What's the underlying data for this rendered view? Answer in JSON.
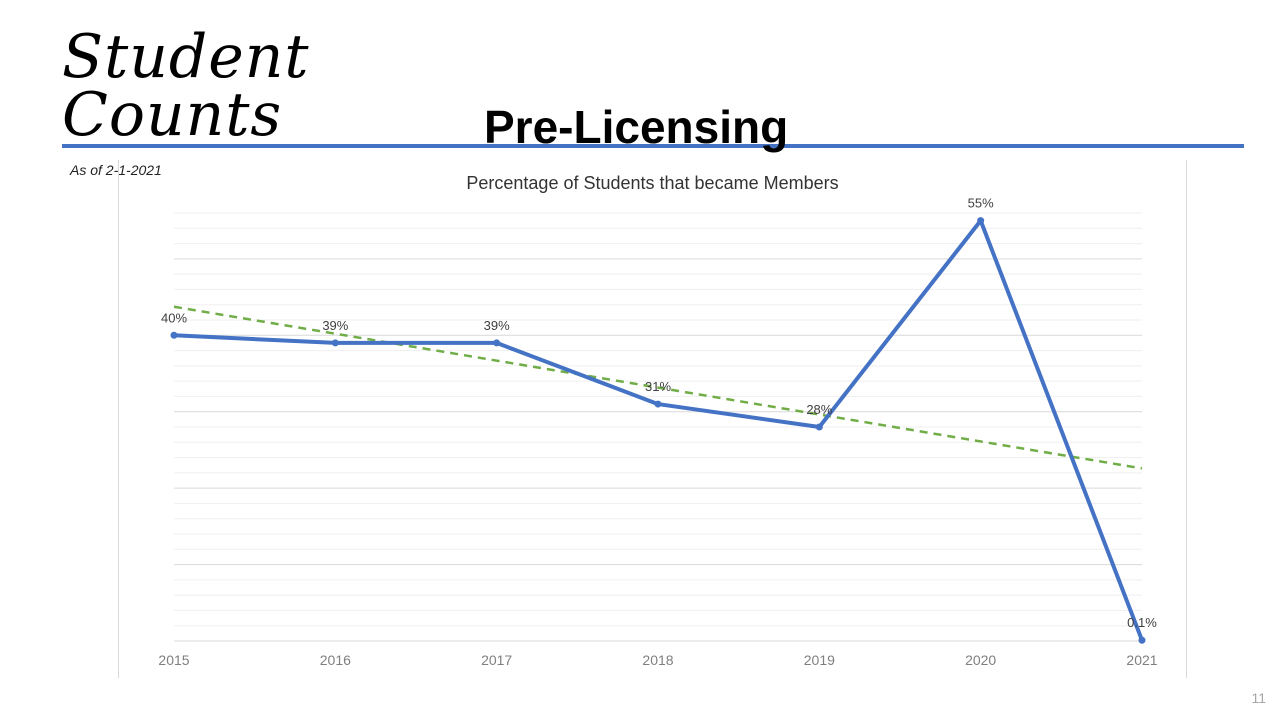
{
  "slide": {
    "title_line1": "Student",
    "title_line2": "Counts",
    "as_of": "As of 2-1-2021",
    "section_title": "Pre-Licensing",
    "page_number": "11",
    "accent_color": "#4472C4",
    "trend_color": "#70AD47"
  },
  "chart_data": {
    "type": "line",
    "title": "Percentage of Students that became Members",
    "xlabel": "",
    "ylabel": "",
    "categories": [
      "2015",
      "2016",
      "2017",
      "2018",
      "2019",
      "2020",
      "2021"
    ],
    "series": [
      {
        "values": [
          40,
          39,
          39,
          31,
          28,
          55,
          0.1
        ],
        "labels": [
          "40%",
          "39%",
          "39%",
          "31%",
          "28%",
          "55%",
          "0.1%"
        ],
        "color": "#4472C4"
      }
    ],
    "trendline": {
      "type": "linear",
      "style": "dashed",
      "color": "#70AD47"
    },
    "ylim": [
      0,
      56
    ],
    "y_axis_visible": false,
    "grid": true,
    "legend": "none"
  }
}
